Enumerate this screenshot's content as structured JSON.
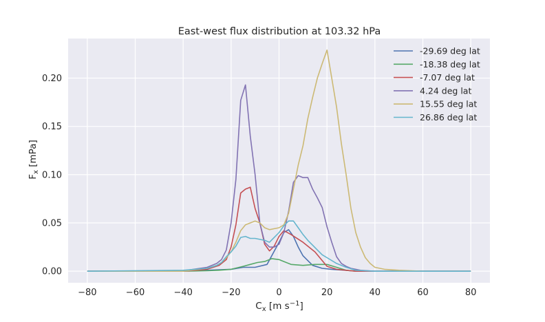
{
  "chart_data": {
    "type": "line",
    "title": "East-west flux distribution at 103.32 hPa",
    "xlabel": {
      "main": "C",
      "sub": "x",
      "rest": " [m s",
      "sup": "−1",
      "end": "]"
    },
    "ylabel": {
      "main": "F",
      "sub": "x",
      "rest": " [mPa]"
    },
    "xlim": [
      -88,
      88
    ],
    "ylim": [
      -0.012,
      0.241
    ],
    "xticks": [
      -80,
      -60,
      -40,
      -20,
      0,
      20,
      40,
      60,
      80
    ],
    "xtick_labels": [
      "−80",
      "−60",
      "−40",
      "−20",
      "0",
      "20",
      "40",
      "60",
      "80"
    ],
    "yticks": [
      0.0,
      0.05,
      0.1,
      0.15,
      0.2
    ],
    "ytick_labels": [
      "0.00",
      "0.05",
      "0.10",
      "0.15",
      "0.20"
    ],
    "grid": true,
    "legend_position": "top-right",
    "series": [
      {
        "name": "-29.69 deg lat",
        "color": "#4c72b0",
        "x": [
          -80,
          -40,
          -30,
          -25,
          -20,
          -15,
          -10,
          -5,
          0,
          2,
          4,
          6,
          8,
          10,
          14,
          18,
          22,
          30,
          40,
          80
        ],
        "y": [
          0,
          0.0005,
          0.001,
          0.0015,
          0.002,
          0.004,
          0.004,
          0.007,
          0.03,
          0.04,
          0.043,
          0.036,
          0.025,
          0.016,
          0.006,
          0.003,
          0.002,
          0.0005,
          0,
          0
        ]
      },
      {
        "name": "-18.38 deg lat",
        "color": "#55a868",
        "x": [
          -80,
          -40,
          -30,
          -25,
          -20,
          -15,
          -12,
          -9,
          -6,
          -3,
          0,
          2,
          5,
          10,
          15,
          20,
          24,
          28,
          32,
          40,
          80
        ],
        "y": [
          0,
          0,
          0.0005,
          0.001,
          0.002,
          0.005,
          0.007,
          0.009,
          0.01,
          0.013,
          0.012,
          0.01,
          0.007,
          0.006,
          0.007,
          0.007,
          0.004,
          0.001,
          0,
          0,
          0
        ]
      },
      {
        "name": "-7.07 deg lat",
        "color": "#c44e52",
        "x": [
          -80,
          -40,
          -30,
          -25,
          -22,
          -20,
          -18,
          -16,
          -14,
          -12,
          -10,
          -8,
          -6,
          -4,
          -2,
          0,
          2,
          5,
          10,
          15,
          20,
          24,
          28,
          32,
          40,
          80
        ],
        "y": [
          0,
          0,
          0.002,
          0.006,
          0.012,
          0.025,
          0.048,
          0.081,
          0.085,
          0.087,
          0.065,
          0.05,
          0.028,
          0.021,
          0.026,
          0.036,
          0.042,
          0.038,
          0.03,
          0.02,
          0.005,
          0.002,
          0.001,
          0,
          0,
          0
        ]
      },
      {
        "name": "4.24 deg lat",
        "color": "#8172b2",
        "x": [
          -80,
          -50,
          -40,
          -30,
          -26,
          -24,
          -22,
          -20,
          -18,
          -16,
          -14,
          -12,
          -10,
          -8,
          -6,
          -4,
          -2,
          0,
          2,
          4,
          6,
          8,
          10,
          12,
          14,
          16,
          18,
          20,
          22,
          24,
          26,
          28,
          30,
          34,
          40,
          50,
          80
        ],
        "y": [
          0,
          0,
          0.0005,
          0.004,
          0.008,
          0.012,
          0.022,
          0.05,
          0.095,
          0.177,
          0.193,
          0.14,
          0.1,
          0.05,
          0.03,
          0.025,
          0.025,
          0.028,
          0.04,
          0.062,
          0.092,
          0.099,
          0.097,
          0.097,
          0.085,
          0.076,
          0.066,
          0.046,
          0.03,
          0.015,
          0.008,
          0.005,
          0.003,
          0.001,
          0,
          0,
          0
        ]
      },
      {
        "name": "15.55 deg lat",
        "color": "#ccb974",
        "x": [
          -80,
          -40,
          -30,
          -26,
          -24,
          -22,
          -20,
          -18,
          -16,
          -14,
          -12,
          -10,
          -8,
          -6,
          -4,
          -2,
          0,
          2,
          4,
          6,
          8,
          10,
          12,
          14,
          16,
          18,
          20,
          22,
          24,
          26,
          28,
          30,
          32,
          34,
          36,
          38,
          40,
          44,
          50,
          60,
          80
        ],
        "y": [
          0,
          0,
          0.003,
          0.006,
          0.009,
          0.014,
          0.02,
          0.03,
          0.042,
          0.048,
          0.05,
          0.052,
          0.05,
          0.045,
          0.043,
          0.044,
          0.045,
          0.048,
          0.06,
          0.085,
          0.11,
          0.13,
          0.158,
          0.18,
          0.2,
          0.215,
          0.229,
          0.2,
          0.17,
          0.132,
          0.1,
          0.065,
          0.04,
          0.025,
          0.014,
          0.008,
          0.004,
          0.002,
          0.001,
          0,
          0
        ]
      },
      {
        "name": "26.86 deg lat",
        "color": "#64b5cd",
        "x": [
          -80,
          -40,
          -30,
          -26,
          -24,
          -22,
          -20,
          -18,
          -16,
          -14,
          -12,
          -10,
          -8,
          -6,
          -4,
          -2,
          0,
          2,
          4,
          6,
          8,
          10,
          12,
          14,
          16,
          18,
          20,
          24,
          28,
          32,
          40,
          80
        ],
        "y": [
          0,
          0.001,
          0.003,
          0.006,
          0.009,
          0.015,
          0.02,
          0.026,
          0.035,
          0.036,
          0.034,
          0.034,
          0.033,
          0.032,
          0.03,
          0.035,
          0.04,
          0.047,
          0.052,
          0.052,
          0.045,
          0.038,
          0.032,
          0.027,
          0.022,
          0.017,
          0.014,
          0.008,
          0.004,
          0.001,
          0,
          0
        ]
      }
    ]
  }
}
